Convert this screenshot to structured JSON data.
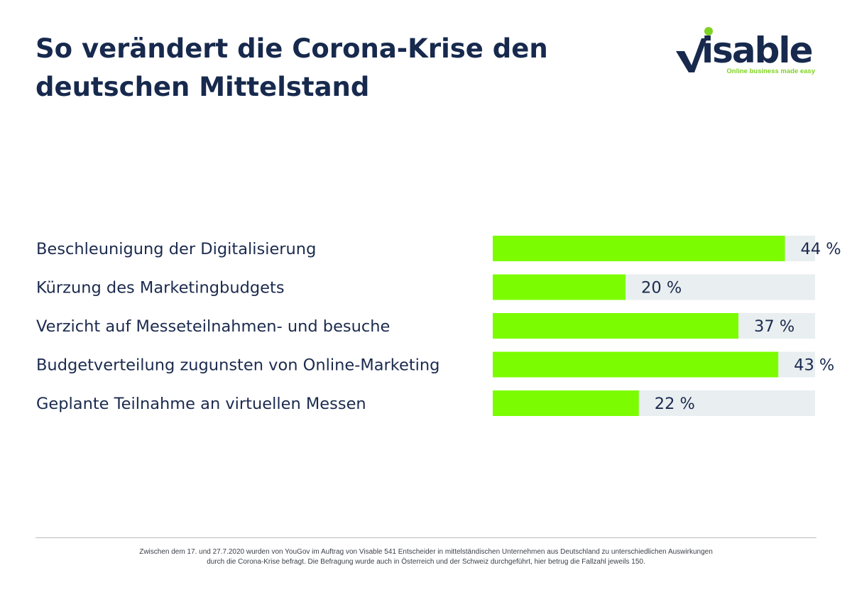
{
  "title_line1": "So verändert die Corona-Krise den",
  "title_line2": "deutschen Mittelstand",
  "logo": {
    "wordmark": "visable",
    "tagline": "Online business made easy",
    "colors": {
      "navy": "#17294d",
      "green": "#7ed321"
    }
  },
  "colors": {
    "bar": "#7cfc00",
    "track": "#e9eef0",
    "text": "#1b2a4e"
  },
  "chart_data": {
    "type": "bar",
    "orientation": "horizontal",
    "title": "So verändert die Corona-Krise den deutschen Mittelstand",
    "unit": "%",
    "xlim": [
      0,
      100
    ],
    "categories": [
      "Beschleunigung der Digitalisierung",
      "Kürzung des Marketingbudgets",
      "Verzicht auf Messeteilnahmen- und besuche",
      "Budgetverteilung zugunsten von Online-Marketing",
      "Geplante Teilnahme an virtuellen Messen"
    ],
    "values": [
      44,
      20,
      37,
      43,
      22
    ],
    "value_labels": [
      "44 %",
      "20 %",
      "37 %",
      "43 %",
      "22 %"
    ],
    "grid": false,
    "legend": "none"
  },
  "footnote_line1": "Zwischen dem 17. und 27.7.2020 wurden von YouGov im Auftrag von Visable 541 Entscheider in mittelständischen Unternehmen aus Deutschland zu unterschiedlichen Auswirkungen",
  "footnote_line2": "durch die Corona-Krise befragt. Die Befragung wurde auch in Österreich und der Schweiz durchgeführt, hier betrug die Fallzahl jeweils 150."
}
